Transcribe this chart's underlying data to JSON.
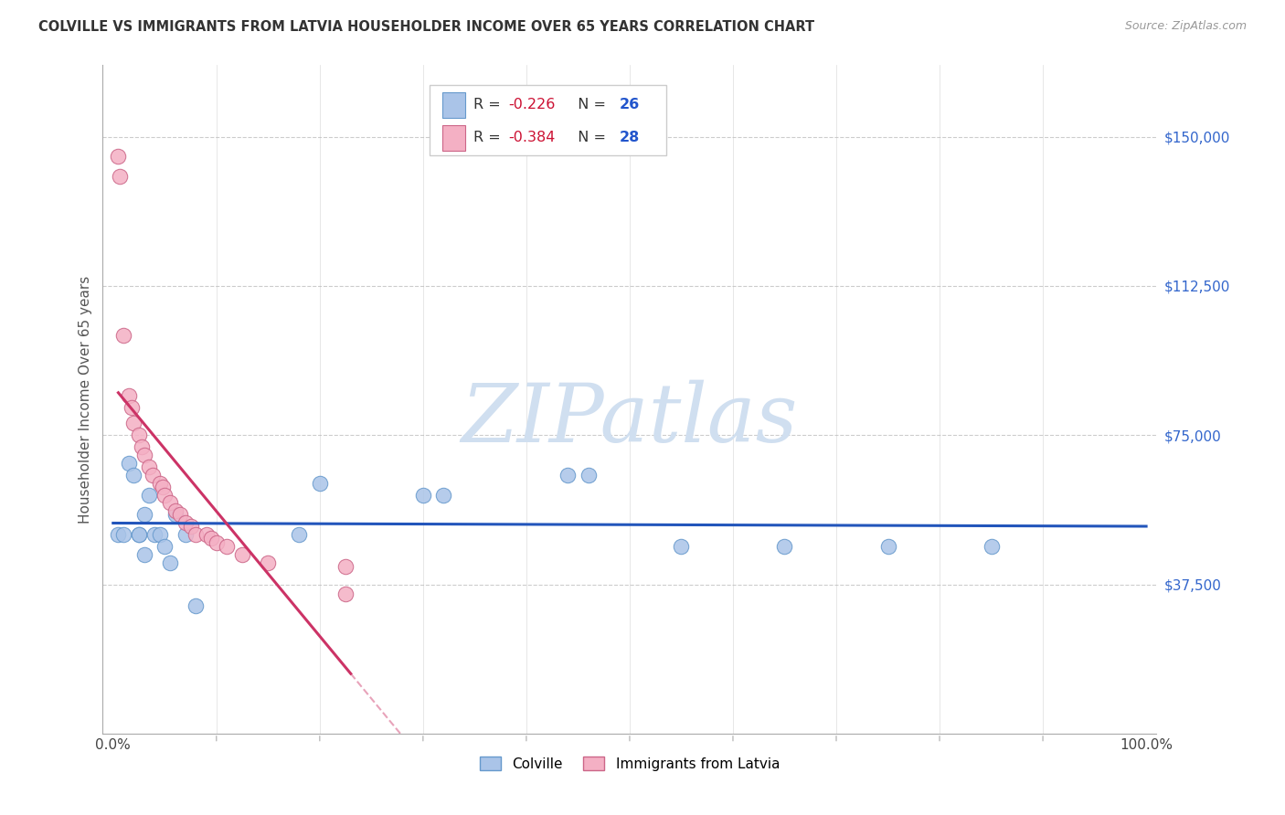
{
  "title": "COLVILLE VS IMMIGRANTS FROM LATVIA HOUSEHOLDER INCOME OVER 65 YEARS CORRELATION CHART",
  "source": "Source: ZipAtlas.com",
  "ylabel": "Householder Income Over 65 years",
  "y_ticks": [
    37500,
    75000,
    112500,
    150000
  ],
  "y_tick_labels": [
    "$37,500",
    "$75,000",
    "$112,500",
    "$150,000"
  ],
  "colville_R": "-0.226",
  "colville_N": "26",
  "latvia_R": "-0.384",
  "latvia_N": "28",
  "colville_color": "#aac4e8",
  "colville_edge_color": "#6699cc",
  "colville_line_color": "#2255bb",
  "latvia_color": "#f4b0c4",
  "latvia_edge_color": "#cc6688",
  "latvia_line_color": "#cc3366",
  "ytick_color": "#3366cc",
  "background_color": "#ffffff",
  "watermark_color": "#d0dff0",
  "colville_x": [
    0.5,
    1.0,
    1.5,
    2.0,
    2.5,
    2.5,
    3.0,
    3.0,
    3.5,
    4.0,
    4.5,
    5.0,
    5.5,
    6.0,
    7.0,
    8.0,
    18.0,
    20.0,
    30.0,
    32.0,
    44.0,
    46.0,
    55.0,
    65.0,
    75.0,
    85.0
  ],
  "colville_y": [
    50000,
    50000,
    68000,
    65000,
    50000,
    50000,
    45000,
    55000,
    60000,
    50000,
    50000,
    47000,
    43000,
    55000,
    50000,
    32000,
    50000,
    63000,
    60000,
    60000,
    65000,
    65000,
    47000,
    47000,
    47000,
    47000
  ],
  "latvia_x": [
    0.5,
    0.6,
    1.0,
    1.5,
    1.8,
    2.0,
    2.5,
    2.8,
    3.0,
    3.5,
    3.8,
    4.5,
    4.8,
    5.0,
    5.5,
    6.0,
    6.5,
    7.0,
    7.5,
    8.0,
    9.0,
    9.5,
    10.0,
    11.0,
    12.5,
    15.0,
    22.5,
    22.5
  ],
  "latvia_y": [
    145000,
    140000,
    100000,
    85000,
    82000,
    78000,
    75000,
    72000,
    70000,
    67000,
    65000,
    63000,
    62000,
    60000,
    58000,
    56000,
    55000,
    53000,
    52000,
    50000,
    50000,
    49000,
    48000,
    47000,
    45000,
    43000,
    42000,
    35000
  ],
  "xlim_min": -1,
  "xlim_max": 101,
  "ylim_min": 0,
  "ylim_max": 168000,
  "x_minor_ticks": [
    10,
    20,
    30,
    40,
    50,
    60,
    70,
    80,
    90
  ]
}
